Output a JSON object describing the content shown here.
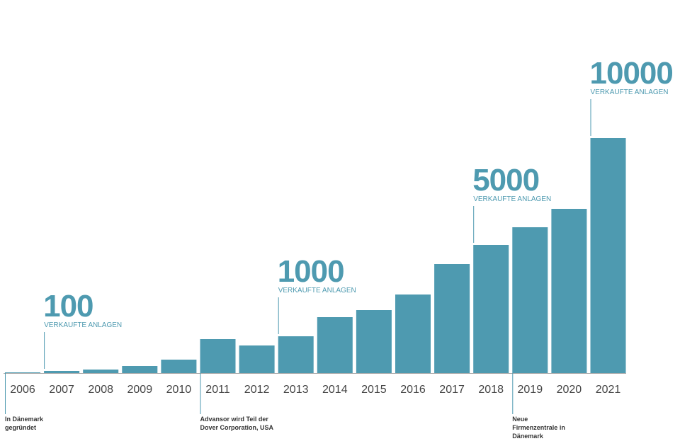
{
  "chart_data": {
    "type": "bar",
    "color": "#4e9ab0",
    "categories": [
      "2006",
      "2007",
      "2008",
      "2009",
      "2010",
      "2011",
      "2012",
      "2013",
      "2014",
      "2015",
      "2016",
      "2017",
      "2018",
      "2019",
      "2020",
      "2021"
    ],
    "values": [
      1,
      3,
      5,
      10,
      19,
      48,
      39,
      52,
      79,
      89,
      111,
      154,
      181,
      206,
      232,
      332
    ],
    "milestones": [
      {
        "category": "2007",
        "value": 100,
        "label": "VERKAUFTE ANLAGEN"
      },
      {
        "category": "2013",
        "value": 1000,
        "label": "VERKAUFTE ANLAGEN"
      },
      {
        "category": "2018",
        "value": 5000,
        "label": "VERKAUFTE ANLAGEN"
      },
      {
        "category": "2021",
        "value": 10000,
        "label": "VERKAUFTE ANLAGEN"
      }
    ],
    "events": [
      {
        "category": "2006",
        "lines": [
          "In Dänemark",
          "gegründet"
        ]
      },
      {
        "category": "2011",
        "lines": [
          "Advansor wird Teil der",
          "Dover Corporation, USA"
        ]
      },
      {
        "category": "2019",
        "lines": [
          "Neue",
          "Firmenzentrale in",
          "Dänemark"
        ]
      }
    ]
  }
}
